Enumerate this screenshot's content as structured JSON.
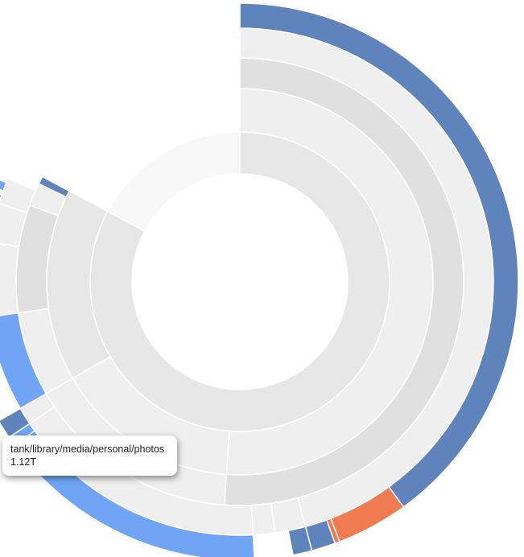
{
  "chart_data": {
    "type": "sunburst",
    "title": "",
    "palette": {
      "dark_blue": "#5f83bb",
      "bright_blue": "#70a5f5",
      "cyan": "#67f3fb",
      "orange": "#ef7c50",
      "grey_light": "#efefef",
      "grey_mid": "#e7e7e7",
      "grey_dark": "#e0e0e0",
      "grey_faint": "#f8f8f8"
    },
    "rings": [
      {
        "name": "depth-1",
        "segments": [
          {
            "start": 0,
            "end": 298,
            "color": "grey_mid"
          },
          {
            "start": 298,
            "end": 360,
            "color": "grey_faint"
          }
        ]
      },
      {
        "name": "depth-2",
        "segments": [
          {
            "start": 0,
            "end": 184,
            "color": "grey_light"
          },
          {
            "start": 184,
            "end": 240,
            "color": "grey_light"
          },
          {
            "start": 240,
            "end": 298,
            "color": "grey_mid"
          }
        ]
      },
      {
        "name": "depth-3",
        "segments": [
          {
            "start": 0,
            "end": 184,
            "color": "grey_dark"
          },
          {
            "start": 184,
            "end": 240,
            "color": "grey_light"
          },
          {
            "start": 240,
            "end": 262,
            "color": "grey_light"
          },
          {
            "start": 262,
            "end": 290,
            "color": "grey_dark"
          },
          {
            "start": 290,
            "end": 296,
            "color": "grey_light"
          },
          {
            "start": 296,
            "end": 298,
            "color": "dark_blue"
          }
        ]
      },
      {
        "name": "depth-4",
        "segments": [
          {
            "start": 0,
            "end": 165,
            "color": "grey_light"
          },
          {
            "start": 165,
            "end": 172,
            "color": "grey_light"
          },
          {
            "start": 172,
            "end": 177,
            "color": "grey_light"
          },
          {
            "start": 177,
            "end": 236,
            "color": "grey_light"
          },
          {
            "start": 236,
            "end": 240,
            "color": "grey_light"
          },
          {
            "start": 240,
            "end": 262,
            "color": "bright_blue"
          },
          {
            "start": 262,
            "end": 279,
            "color": "grey_light"
          },
          {
            "start": 279,
            "end": 288,
            "color": "grey_light"
          },
          {
            "start": 288,
            "end": 294,
            "color": "grey_light"
          }
        ]
      },
      {
        "name": "depth-5",
        "segments": [
          {
            "start": 0,
            "end": 144,
            "color": "dark_blue"
          },
          {
            "start": 144,
            "end": 159,
            "color": "orange"
          },
          {
            "start": 159,
            "end": 160,
            "color": "orange"
          },
          {
            "start": 160,
            "end": 165,
            "color": "dark_blue"
          },
          {
            "start": 165,
            "end": 169,
            "color": "dark_blue"
          },
          {
            "start": 177,
            "end": 234,
            "color": "bright_blue"
          },
          {
            "start": 234,
            "end": 236,
            "color": "bright_blue"
          },
          {
            "start": 236,
            "end": 240,
            "color": "dark_blue"
          },
          {
            "start": 262,
            "end": 279,
            "color": "cyan"
          },
          {
            "start": 279,
            "end": 288,
            "color": "bright_blue"
          },
          {
            "start": 288,
            "end": 290,
            "color": "dark_blue"
          },
          {
            "start": 291,
            "end": 293,
            "color": "bright_blue"
          }
        ]
      }
    ]
  },
  "tooltip": {
    "path": "tank/library/media/personal/photos",
    "size": "1.12T"
  }
}
